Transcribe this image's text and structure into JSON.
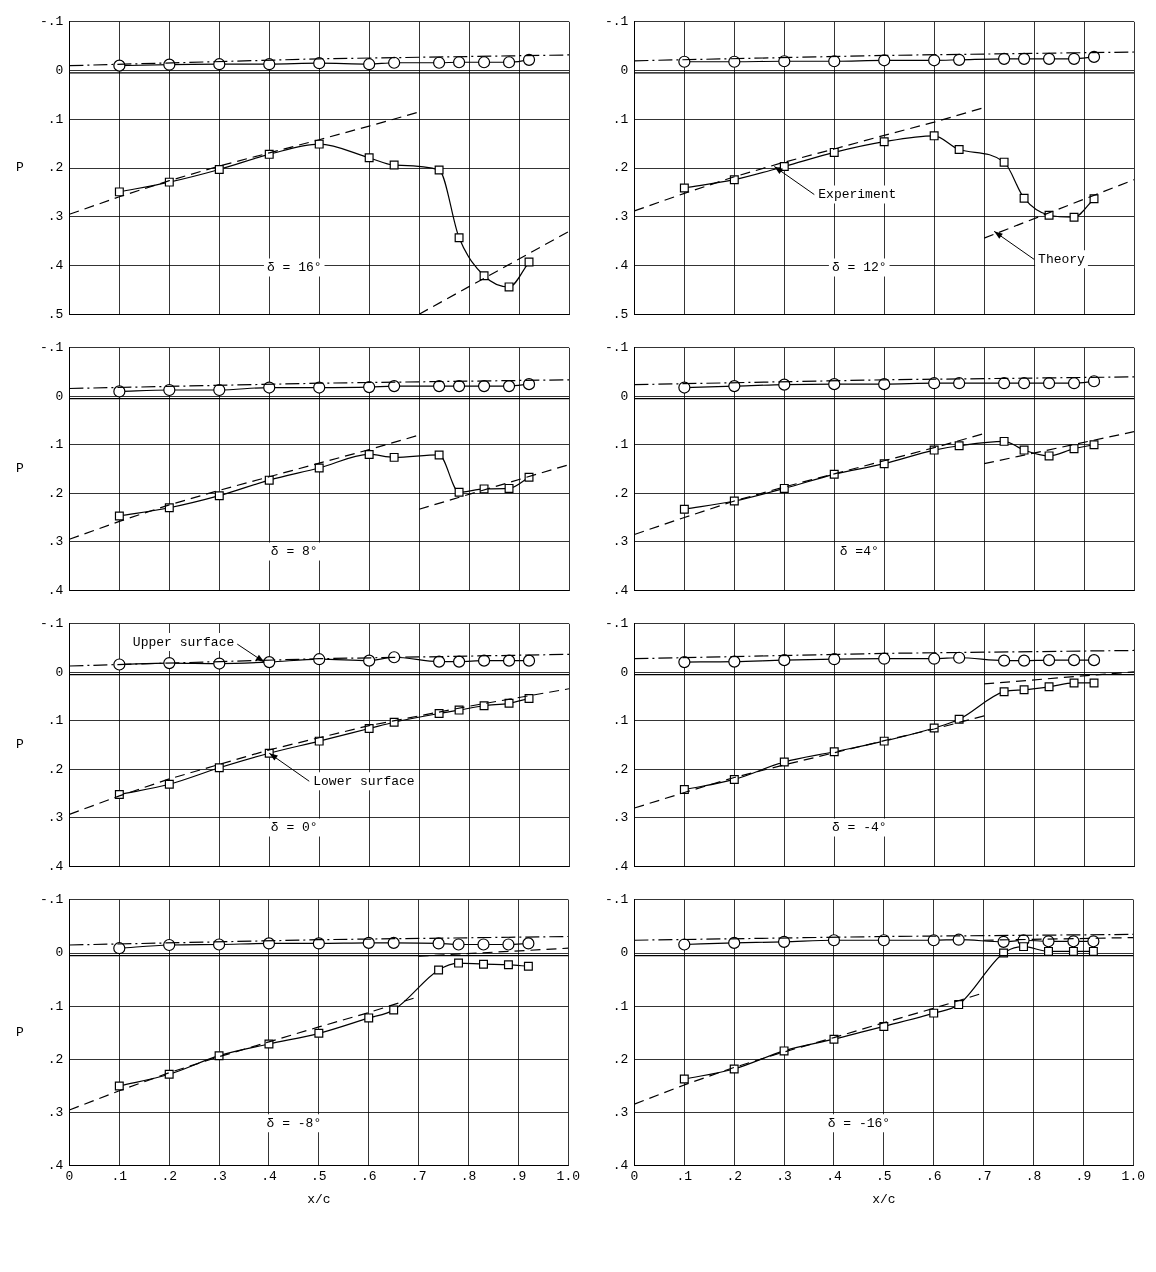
{
  "chart_data": [
    {
      "type": "line",
      "ylabel": "P",
      "annotations": [
        "δ = 16°"
      ],
      "tick_labels": "y",
      "grid": true,
      "xlim": [
        0,
        1
      ],
      "ylim": [
        0.5,
        -0.1
      ],
      "xticks": [
        {
          "value": 0,
          "label": null
        },
        {
          "value": 0.1,
          "label": null
        },
        {
          "value": 0.2,
          "label": null
        },
        {
          "value": 0.3,
          "label": null
        },
        {
          "value": 0.4,
          "label": null
        },
        {
          "value": 0.5,
          "label": null
        },
        {
          "value": 0.6,
          "label": null
        },
        {
          "value": 0.7,
          "label": null
        },
        {
          "value": 0.8,
          "label": null
        },
        {
          "value": 0.9,
          "label": null
        },
        {
          "value": 1,
          "label": null
        }
      ],
      "yticks": [
        {
          "value": -0.1,
          "label": "-.1"
        },
        {
          "value": 0,
          "label": "0"
        },
        {
          "value": 0.1,
          "label": ".1"
        },
        {
          "value": 0.2,
          "label": ".2"
        },
        {
          "value": 0.3,
          "label": ".3"
        },
        {
          "value": 0.4,
          "label": ".4"
        },
        {
          "value": 0.5,
          "label": ".5"
        }
      ],
      "ref_lines": [
        {
          "axis": "y",
          "value": 0.005
        }
      ],
      "series": [
        {
          "type": "line",
          "marker": "circle",
          "line_style": "solid",
          "color": "#000000",
          "x": [
            0.1,
            0.2,
            0.3,
            0.4,
            0.5,
            0.6,
            0.65,
            0.74,
            0.78,
            0.83,
            0.88,
            0.92
          ],
          "values": [
            -0.01,
            -0.012,
            -0.013,
            -0.013,
            -0.015,
            -0.013,
            -0.016,
            -0.016,
            -0.017,
            -0.017,
            -0.017,
            -0.022
          ]
        },
        {
          "type": "line",
          "marker": "none",
          "line_style": "dashdot",
          "color": "#000000",
          "x": [
            0,
            0.5,
            1
          ],
          "values": [
            -0.01,
            -0.024,
            -0.032
          ]
        },
        {
          "type": "line",
          "marker": "square",
          "line_style": "solid",
          "color": "#000000",
          "x": [
            0.1,
            0.2,
            0.3,
            0.4,
            0.5,
            0.6,
            0.65,
            0.74,
            0.78,
            0.83,
            0.88,
            0.92
          ],
          "values": [
            0.249,
            0.229,
            0.203,
            0.172,
            0.151,
            0.179,
            0.194,
            0.204,
            0.343,
            0.421,
            0.444,
            0.393
          ]
        },
        {
          "type": "line",
          "marker": "none",
          "line_style": "dashed",
          "color": "#000000",
          "x": [
            0,
            0.1,
            0.2,
            0.3,
            0.4,
            0.5,
            0.6,
            0.7
          ],
          "values": [
            0.295,
            0.259,
            0.226,
            0.196,
            0.169,
            0.142,
            0.114,
            0.085
          ]
        },
        {
          "type": "line",
          "marker": "none",
          "line_style": "dashed",
          "color": "#000000",
          "x": [
            0.7,
            1
          ],
          "values": [
            0.5,
            0.33
          ]
        }
      ]
    },
    {
      "type": "line",
      "annotations": [
        "δ = 12°",
        {
          "text": "Experiment",
          "x": 0.28,
          "y": 0.197
        },
        {
          "text": "Theory",
          "x": 0.72,
          "y": 0.33
        }
      ],
      "tick_labels": "y",
      "grid": true,
      "xlim": [
        0,
        1
      ],
      "ylim": [
        0.5,
        -0.1
      ],
      "xticks": [
        {
          "value": 0,
          "label": null
        },
        {
          "value": 0.1,
          "label": null
        },
        {
          "value": 0.2,
          "label": null
        },
        {
          "value": 0.3,
          "label": null
        },
        {
          "value": 0.4,
          "label": null
        },
        {
          "value": 0.5,
          "label": null
        },
        {
          "value": 0.6,
          "label": null
        },
        {
          "value": 0.7,
          "label": null
        },
        {
          "value": 0.8,
          "label": null
        },
        {
          "value": 0.9,
          "label": null
        },
        {
          "value": 1,
          "label": null
        }
      ],
      "yticks": [
        {
          "value": -0.1,
          "label": "-.1"
        },
        {
          "value": 0,
          "label": "0"
        },
        {
          "value": 0.1,
          "label": ".1"
        },
        {
          "value": 0.2,
          "label": ".2"
        },
        {
          "value": 0.3,
          "label": ".3"
        },
        {
          "value": 0.4,
          "label": ".4"
        },
        {
          "value": 0.5,
          "label": ".5"
        }
      ],
      "ref_lines": [
        {
          "axis": "y",
          "value": 0.005
        }
      ],
      "series": [
        {
          "type": "line",
          "marker": "circle",
          "line_style": "solid",
          "color": "#000000",
          "x": [
            0.1,
            0.2,
            0.3,
            0.4,
            0.5,
            0.6,
            0.65,
            0.74,
            0.78,
            0.83,
            0.88,
            0.92
          ],
          "values": [
            -0.018,
            -0.018,
            -0.019,
            -0.019,
            -0.021,
            -0.021,
            -0.022,
            -0.024,
            -0.024,
            -0.024,
            -0.024,
            -0.028
          ]
        },
        {
          "type": "line",
          "marker": "none",
          "line_style": "dashdot",
          "color": "#000000",
          "x": [
            0,
            0.5,
            1
          ],
          "values": [
            -0.02,
            -0.031,
            -0.038
          ]
        },
        {
          "type": "line",
          "marker": "square",
          "line_style": "solid",
          "color": "#000000",
          "x": [
            0.1,
            0.2,
            0.3,
            0.4,
            0.5,
            0.6,
            0.65,
            0.74,
            0.78,
            0.83,
            0.88,
            0.92
          ],
          "values": [
            0.241,
            0.224,
            0.197,
            0.168,
            0.146,
            0.134,
            0.162,
            0.188,
            0.262,
            0.297,
            0.301,
            0.263
          ]
        },
        {
          "type": "line",
          "marker": "none",
          "line_style": "dashed",
          "color": "#000000",
          "x": [
            0,
            0.1,
            0.2,
            0.3,
            0.4,
            0.5,
            0.6,
            0.7
          ],
          "values": [
            0.288,
            0.252,
            0.218,
            0.188,
            0.161,
            0.133,
            0.106,
            0.076
          ]
        },
        {
          "type": "line",
          "marker": "none",
          "line_style": "dashed",
          "color": "#000000",
          "x": [
            0.7,
            1
          ],
          "values": [
            0.344,
            0.224
          ]
        }
      ]
    },
    {
      "type": "line",
      "ylabel": "P",
      "annotations": [
        "δ = 8°"
      ],
      "tick_labels": "y",
      "grid": true,
      "xlim": [
        0,
        1
      ],
      "ylim": [
        0.4,
        -0.1
      ],
      "xticks": [
        {
          "value": 0,
          "label": null
        },
        {
          "value": 0.1,
          "label": null
        },
        {
          "value": 0.2,
          "label": null
        },
        {
          "value": 0.3,
          "label": null
        },
        {
          "value": 0.4,
          "label": null
        },
        {
          "value": 0.5,
          "label": null
        },
        {
          "value": 0.6,
          "label": null
        },
        {
          "value": 0.7,
          "label": null
        },
        {
          "value": 0.8,
          "label": null
        },
        {
          "value": 0.9,
          "label": null
        },
        {
          "value": 1,
          "label": null
        }
      ],
      "yticks": [
        {
          "value": -0.1,
          "label": "-.1"
        },
        {
          "value": 0,
          "label": "0"
        },
        {
          "value": 0.1,
          "label": ".1"
        },
        {
          "value": 0.2,
          "label": ".2"
        },
        {
          "value": 0.3,
          "label": ".3"
        },
        {
          "value": 0.4,
          "label": ".4"
        }
      ],
      "ref_lines": [
        {
          "axis": "y",
          "value": 0.005
        }
      ],
      "series": [
        {
          "type": "line",
          "marker": "circle",
          "line_style": "solid",
          "color": "#000000",
          "x": [
            0.1,
            0.2,
            0.3,
            0.4,
            0.5,
            0.6,
            0.65,
            0.74,
            0.78,
            0.83,
            0.88,
            0.92
          ],
          "values": [
            -0.01,
            -0.013,
            -0.013,
            -0.018,
            -0.018,
            -0.019,
            -0.021,
            -0.021,
            -0.021,
            -0.021,
            -0.021,
            -0.025
          ]
        },
        {
          "type": "line",
          "marker": "none",
          "line_style": "dashdot",
          "color": "#000000",
          "x": [
            0,
            0.5,
            1
          ],
          "values": [
            -0.016,
            -0.027,
            -0.034
          ]
        },
        {
          "type": "line",
          "marker": "square",
          "line_style": "solid",
          "color": "#000000",
          "x": [
            0.1,
            0.2,
            0.3,
            0.4,
            0.5,
            0.6,
            0.65,
            0.74,
            0.78,
            0.83,
            0.88,
            0.92
          ],
          "values": [
            0.247,
            0.23,
            0.205,
            0.173,
            0.148,
            0.12,
            0.126,
            0.121,
            0.198,
            0.191,
            0.19,
            0.167
          ]
        },
        {
          "type": "line",
          "marker": "none",
          "line_style": "dashed",
          "color": "#000000",
          "x": [
            0,
            0.1,
            0.2,
            0.3,
            0.4,
            0.5,
            0.6,
            0.7
          ],
          "values": [
            0.295,
            0.258,
            0.224,
            0.194,
            0.166,
            0.138,
            0.11,
            0.08
          ]
        },
        {
          "type": "line",
          "marker": "none",
          "line_style": "dashed",
          "color": "#000000",
          "x": [
            0.7,
            1
          ],
          "values": [
            0.233,
            0.141
          ]
        }
      ]
    },
    {
      "type": "line",
      "annotations": [
        "δ =4°"
      ],
      "tick_labels": "y",
      "grid": true,
      "xlim": [
        0,
        1
      ],
      "ylim": [
        0.4,
        -0.1
      ],
      "xticks": [
        {
          "value": 0,
          "label": null
        },
        {
          "value": 0.1,
          "label": null
        },
        {
          "value": 0.2,
          "label": null
        },
        {
          "value": 0.3,
          "label": null
        },
        {
          "value": 0.4,
          "label": null
        },
        {
          "value": 0.5,
          "label": null
        },
        {
          "value": 0.6,
          "label": null
        },
        {
          "value": 0.7,
          "label": null
        },
        {
          "value": 0.8,
          "label": null
        },
        {
          "value": 0.9,
          "label": null
        },
        {
          "value": 1,
          "label": null
        }
      ],
      "yticks": [
        {
          "value": -0.1,
          "label": "-.1"
        },
        {
          "value": 0,
          "label": "0"
        },
        {
          "value": 0.1,
          "label": ".1"
        },
        {
          "value": 0.2,
          "label": ".2"
        },
        {
          "value": 0.3,
          "label": ".3"
        },
        {
          "value": 0.4,
          "label": ".4"
        }
      ],
      "ref_lines": [
        {
          "axis": "y",
          "value": 0.005
        }
      ],
      "series": [
        {
          "type": "line",
          "marker": "circle",
          "line_style": "solid",
          "color": "#000000",
          "x": [
            0.1,
            0.2,
            0.3,
            0.4,
            0.5,
            0.6,
            0.65,
            0.74,
            0.78,
            0.83,
            0.88,
            0.92
          ],
          "values": [
            -0.018,
            -0.021,
            -0.024,
            -0.025,
            -0.025,
            -0.027,
            -0.027,
            -0.027,
            -0.027,
            -0.027,
            -0.027,
            -0.031
          ]
        },
        {
          "type": "line",
          "marker": "none",
          "line_style": "dashdot",
          "color": "#000000",
          "x": [
            0,
            0.5,
            1
          ],
          "values": [
            -0.024,
            -0.034,
            -0.04
          ]
        },
        {
          "type": "line",
          "marker": "square",
          "line_style": "solid",
          "color": "#000000",
          "x": [
            0.1,
            0.2,
            0.3,
            0.4,
            0.5,
            0.6,
            0.65,
            0.74,
            0.78,
            0.83,
            0.88,
            0.92
          ],
          "values": [
            0.233,
            0.216,
            0.19,
            0.161,
            0.139,
            0.111,
            0.102,
            0.093,
            0.111,
            0.123,
            0.108,
            0.1
          ]
        },
        {
          "type": "line",
          "marker": "none",
          "line_style": "dashed",
          "color": "#000000",
          "x": [
            0,
            0.1,
            0.2,
            0.3,
            0.4,
            0.5,
            0.6,
            0.7
          ],
          "values": [
            0.285,
            0.25,
            0.216,
            0.187,
            0.16,
            0.133,
            0.106,
            0.077
          ]
        },
        {
          "type": "line",
          "marker": "none",
          "line_style": "dashed",
          "color": "#000000",
          "x": [
            0.7,
            1
          ],
          "values": [
            0.139,
            0.073
          ]
        }
      ]
    },
    {
      "type": "line",
      "ylabel": "P",
      "annotations": [
        "δ = 0°",
        {
          "text": "Upper surface",
          "x": 0.39,
          "y": -0.021
        },
        {
          "text": "Lower surface",
          "x": 0.4,
          "y": 0.167
        }
      ],
      "tick_labels": "y",
      "grid": true,
      "xlim": [
        0,
        1
      ],
      "ylim": [
        0.4,
        -0.1
      ],
      "xticks": [
        {
          "value": 0,
          "label": null
        },
        {
          "value": 0.1,
          "label": null
        },
        {
          "value": 0.2,
          "label": null
        },
        {
          "value": 0.3,
          "label": null
        },
        {
          "value": 0.4,
          "label": null
        },
        {
          "value": 0.5,
          "label": null
        },
        {
          "value": 0.6,
          "label": null
        },
        {
          "value": 0.7,
          "label": null
        },
        {
          "value": 0.8,
          "label": null
        },
        {
          "value": 0.9,
          "label": null
        },
        {
          "value": 1,
          "label": null
        }
      ],
      "yticks": [
        {
          "value": -0.1,
          "label": "-.1"
        },
        {
          "value": 0,
          "label": "0"
        },
        {
          "value": 0.1,
          "label": ".1"
        },
        {
          "value": 0.2,
          "label": ".2"
        },
        {
          "value": 0.3,
          "label": ".3"
        },
        {
          "value": 0.4,
          "label": ".4"
        }
      ],
      "ref_lines": [
        {
          "axis": "y",
          "value": 0.005
        }
      ],
      "series": [
        {
          "type": "line",
          "marker": "circle",
          "line_style": "solid",
          "color": "#000000",
          "x": [
            0.1,
            0.2,
            0.3,
            0.4,
            0.5,
            0.6,
            0.65,
            0.74,
            0.78,
            0.83,
            0.88,
            0.92
          ],
          "values": [
            -0.016,
            -0.019,
            -0.018,
            -0.021,
            -0.027,
            -0.024,
            -0.031,
            -0.022,
            -0.022,
            -0.024,
            -0.024,
            -0.024
          ]
        },
        {
          "type": "line",
          "marker": "none",
          "line_style": "dashdot",
          "color": "#000000",
          "x": [
            0,
            0.5,
            1
          ],
          "values": [
            -0.013,
            -0.028,
            -0.037
          ]
        },
        {
          "type": "line",
          "marker": "square",
          "line_style": "solid",
          "color": "#000000",
          "x": [
            0.1,
            0.2,
            0.3,
            0.4,
            0.5,
            0.6,
            0.65,
            0.74,
            0.78,
            0.83,
            0.88,
            0.92
          ],
          "values": [
            0.252,
            0.231,
            0.197,
            0.167,
            0.142,
            0.116,
            0.103,
            0.085,
            0.078,
            0.069,
            0.064,
            0.054
          ]
        },
        {
          "type": "line",
          "marker": "none",
          "line_style": "dashed",
          "color": "#000000",
          "x": [
            0,
            0.1,
            0.2,
            0.3,
            0.4,
            0.5,
            0.6,
            0.7,
            0.8,
            0.9,
            1
          ],
          "values": [
            0.293,
            0.255,
            0.22,
            0.19,
            0.16,
            0.135,
            0.11,
            0.09,
            0.07,
            0.052,
            0.034
          ]
        }
      ]
    },
    {
      "type": "line",
      "annotations": [
        "δ = -4°"
      ],
      "tick_labels": "y",
      "grid": true,
      "xlim": [
        0,
        1
      ],
      "ylim": [
        0.4,
        -0.1
      ],
      "xticks": [
        {
          "value": 0,
          "label": null
        },
        {
          "value": 0.1,
          "label": null
        },
        {
          "value": 0.2,
          "label": null
        },
        {
          "value": 0.3,
          "label": null
        },
        {
          "value": 0.4,
          "label": null
        },
        {
          "value": 0.5,
          "label": null
        },
        {
          "value": 0.6,
          "label": null
        },
        {
          "value": 0.7,
          "label": null
        },
        {
          "value": 0.8,
          "label": null
        },
        {
          "value": 0.9,
          "label": null
        },
        {
          "value": 1,
          "label": null
        }
      ],
      "yticks": [
        {
          "value": -0.1,
          "label": "-.1"
        },
        {
          "value": 0,
          "label": "0"
        },
        {
          "value": 0.1,
          "label": ".1"
        },
        {
          "value": 0.2,
          "label": ".2"
        },
        {
          "value": 0.3,
          "label": ".3"
        },
        {
          "value": 0.4,
          "label": ".4"
        }
      ],
      "ref_lines": [
        {
          "axis": "y",
          "value": 0.005
        }
      ],
      "series": [
        {
          "type": "line",
          "marker": "circle",
          "line_style": "solid",
          "color": "#000000",
          "x": [
            0.1,
            0.2,
            0.3,
            0.4,
            0.5,
            0.6,
            0.65,
            0.74,
            0.78,
            0.83,
            0.88,
            0.92
          ],
          "values": [
            -0.021,
            -0.022,
            -0.025,
            -0.027,
            -0.028,
            -0.028,
            -0.03,
            -0.024,
            -0.024,
            -0.025,
            -0.025,
            -0.025
          ]
        },
        {
          "type": "line",
          "marker": "none",
          "line_style": "dashdot",
          "color": "#000000",
          "x": [
            0,
            0.5,
            1
          ],
          "values": [
            -0.028,
            -0.039,
            -0.045
          ]
        },
        {
          "type": "line",
          "marker": "square",
          "line_style": "solid",
          "color": "#000000",
          "x": [
            0.1,
            0.2,
            0.3,
            0.4,
            0.5,
            0.6,
            0.65,
            0.74,
            0.78,
            0.83,
            0.88,
            0.92
          ],
          "values": [
            0.242,
            0.221,
            0.185,
            0.164,
            0.142,
            0.115,
            0.097,
            0.04,
            0.036,
            0.03,
            0.022,
            0.022
          ]
        },
        {
          "type": "line",
          "marker": "none",
          "line_style": "dashed",
          "color": "#000000",
          "x": [
            0,
            0.1,
            0.2,
            0.3,
            0.4,
            0.5,
            0.6,
            0.7
          ],
          "values": [
            0.28,
            0.248,
            0.217,
            0.191,
            0.166,
            0.141,
            0.117,
            0.09
          ]
        },
        {
          "type": "line",
          "marker": "none",
          "line_style": "dashed",
          "color": "#000000",
          "x": [
            0.7,
            1
          ],
          "values": [
            0.024,
            -0.001
          ]
        }
      ]
    },
    {
      "type": "line",
      "xlabel": "x/c",
      "ylabel": "P",
      "annotations": [
        "δ = -8°"
      ],
      "grid": true,
      "xlim": [
        0,
        1
      ],
      "ylim": [
        0.4,
        -0.1
      ],
      "xticks": [
        {
          "value": 0,
          "label": "0"
        },
        {
          "value": 0.1,
          "label": ".1"
        },
        {
          "value": 0.2,
          "label": ".2"
        },
        {
          "value": 0.3,
          "label": ".3"
        },
        {
          "value": 0.4,
          "label": ".4"
        },
        {
          "value": 0.5,
          "label": ".5"
        },
        {
          "value": 0.6,
          "label": ".6"
        },
        {
          "value": 0.7,
          "label": ".7"
        },
        {
          "value": 0.8,
          "label": ".8"
        },
        {
          "value": 0.9,
          "label": ".9"
        },
        {
          "value": 1,
          "label": "1.0"
        }
      ],
      "yticks": [
        {
          "value": -0.1,
          "label": "-.1"
        },
        {
          "value": 0,
          "label": "0"
        },
        {
          "value": 0.1,
          "label": ".1"
        },
        {
          "value": 0.2,
          "label": ".2"
        },
        {
          "value": 0.3,
          "label": ".3"
        },
        {
          "value": 0.4,
          "label": ".4"
        }
      ],
      "ref_lines": [
        {
          "axis": "y",
          "value": 0.005
        }
      ],
      "series": [
        {
          "type": "line",
          "marker": "circle",
          "line_style": "solid",
          "color": "#000000",
          "x": [
            0.1,
            0.2,
            0.3,
            0.4,
            0.5,
            0.6,
            0.65,
            0.74,
            0.78,
            0.83,
            0.88,
            0.92
          ],
          "values": [
            -0.009,
            -0.015,
            -0.016,
            -0.018,
            -0.018,
            -0.019,
            -0.019,
            -0.018,
            -0.016,
            -0.016,
            -0.016,
            -0.018
          ]
        },
        {
          "type": "line",
          "marker": "none",
          "line_style": "dashdot",
          "color": "#000000",
          "x": [
            0,
            0.5,
            1
          ],
          "values": [
            -0.015,
            -0.025,
            -0.031
          ]
        },
        {
          "type": "line",
          "marker": "square",
          "line_style": "solid",
          "color": "#000000",
          "x": [
            0.1,
            0.2,
            0.3,
            0.4,
            0.5,
            0.6,
            0.65,
            0.74,
            0.78,
            0.83,
            0.88,
            0.92
          ],
          "values": [
            0.25,
            0.228,
            0.193,
            0.171,
            0.151,
            0.122,
            0.107,
            0.032,
            0.019,
            0.021,
            0.022,
            0.025
          ]
        },
        {
          "type": "line",
          "marker": "none",
          "line_style": "dashed",
          "color": "#000000",
          "x": [
            0,
            0.1,
            0.2,
            0.3,
            0.4,
            0.5,
            0.6,
            0.7
          ],
          "values": [
            0.295,
            0.259,
            0.225,
            0.195,
            0.167,
            0.139,
            0.112,
            0.082
          ]
        },
        {
          "type": "line",
          "marker": "none",
          "line_style": "dashed",
          "color": "#000000",
          "x": [
            0.7,
            1
          ],
          "values": [
            0.006,
            -0.009
          ]
        }
      ]
    },
    {
      "type": "line",
      "xlabel": "x/c",
      "annotations": [
        "δ = -16°"
      ],
      "grid": true,
      "xlim": [
        0,
        1
      ],
      "ylim": [
        0.4,
        -0.1
      ],
      "xticks": [
        {
          "value": 0,
          "label": "0"
        },
        {
          "value": 0.1,
          "label": ".1"
        },
        {
          "value": 0.2,
          "label": ".2"
        },
        {
          "value": 0.3,
          "label": ".3"
        },
        {
          "value": 0.4,
          "label": ".4"
        },
        {
          "value": 0.5,
          "label": ".5"
        },
        {
          "value": 0.6,
          "label": ".6"
        },
        {
          "value": 0.7,
          "label": ".7"
        },
        {
          "value": 0.8,
          "label": ".8"
        },
        {
          "value": 0.9,
          "label": ".9"
        },
        {
          "value": 1,
          "label": "1.0"
        }
      ],
      "yticks": [
        {
          "value": -0.1,
          "label": "-.1"
        },
        {
          "value": 0,
          "label": "0"
        },
        {
          "value": 0.1,
          "label": ".1"
        },
        {
          "value": 0.2,
          "label": ".2"
        },
        {
          "value": 0.3,
          "label": ".3"
        },
        {
          "value": 0.4,
          "label": ".4"
        }
      ],
      "ref_lines": [
        {
          "axis": "y",
          "value": 0.005
        }
      ],
      "series": [
        {
          "type": "line",
          "marker": "circle",
          "line_style": "solid",
          "color": "#000000",
          "x": [
            0.1,
            0.2,
            0.3,
            0.4,
            0.5,
            0.6,
            0.65,
            0.74,
            0.78,
            0.83,
            0.88,
            0.92
          ],
          "values": [
            -0.016,
            -0.019,
            -0.021,
            -0.024,
            -0.024,
            -0.024,
            -0.025,
            -0.021,
            -0.024,
            -0.022,
            -0.022,
            -0.022
          ]
        },
        {
          "type": "line",
          "marker": "none",
          "line_style": "dashdot",
          "color": "#000000",
          "x": [
            0,
            0.5,
            1
          ],
          "values": [
            -0.024,
            -0.031,
            -0.035
          ]
        },
        {
          "type": "line",
          "marker": "square",
          "line_style": "solid",
          "color": "#000000",
          "x": [
            0.1,
            0.2,
            0.3,
            0.4,
            0.5,
            0.6,
            0.65,
            0.74,
            0.78,
            0.83,
            0.88,
            0.92
          ],
          "values": [
            0.237,
            0.218,
            0.184,
            0.162,
            0.138,
            0.113,
            0.097,
            0,
            -0.012,
            -0.003,
            -0.003,
            -0.003
          ]
        },
        {
          "type": "line",
          "marker": "none",
          "line_style": "dashed",
          "color": "#000000",
          "x": [
            0,
            0.1,
            0.2,
            0.3,
            0.4,
            0.5,
            0.6,
            0.7
          ],
          "values": [
            0.284,
            0.248,
            0.215,
            0.186,
            0.159,
            0.131,
            0.104,
            0.075
          ]
        },
        {
          "type": "line",
          "marker": "none",
          "line_style": "dashed",
          "color": "#000000",
          "x": [
            0.7,
            1
          ],
          "values": [
            -0.024,
            -0.029
          ]
        }
      ]
    }
  ]
}
